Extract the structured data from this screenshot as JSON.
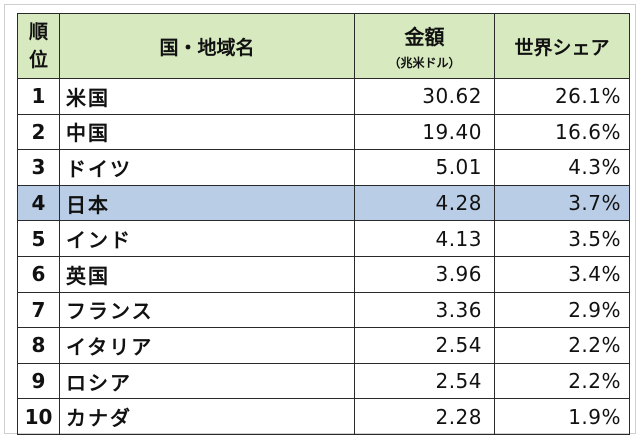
{
  "header": {
    "rank": [
      "順",
      "位"
    ],
    "region": "国・地域名",
    "amount": "金額",
    "amount_unit": "（兆米ドル）",
    "share": "世界シェア"
  },
  "highlight_color": "#b9cde6",
  "header_color": "#d7e9bf",
  "rows": [
    {
      "rank": "1",
      "name": "米国",
      "amount": "30.62",
      "share": "26.1%",
      "highlight": false
    },
    {
      "rank": "2",
      "name": "中国",
      "amount": "19.40",
      "share": "16.6%",
      "highlight": false
    },
    {
      "rank": "3",
      "name": "ドイツ",
      "amount": "5.01",
      "share": "4.3%",
      "highlight": false
    },
    {
      "rank": "4",
      "name": "日本",
      "amount": "4.28",
      "share": "3.7%",
      "highlight": true
    },
    {
      "rank": "5",
      "name": "インド",
      "amount": "4.13",
      "share": "3.5%",
      "highlight": false
    },
    {
      "rank": "6",
      "name": "英国",
      "amount": "3.96",
      "share": "3.4%",
      "highlight": false
    },
    {
      "rank": "7",
      "name": "フランス",
      "amount": "3.36",
      "share": "2.9%",
      "highlight": false
    },
    {
      "rank": "8",
      "name": "イタリア",
      "amount": "2.54",
      "share": "2.2%",
      "highlight": false
    },
    {
      "rank": "9",
      "name": "ロシア",
      "amount": "2.54",
      "share": "2.2%",
      "highlight": false
    },
    {
      "rank": "10",
      "name": "カナダ",
      "amount": "2.28",
      "share": "1.9%",
      "highlight": false
    }
  ]
}
